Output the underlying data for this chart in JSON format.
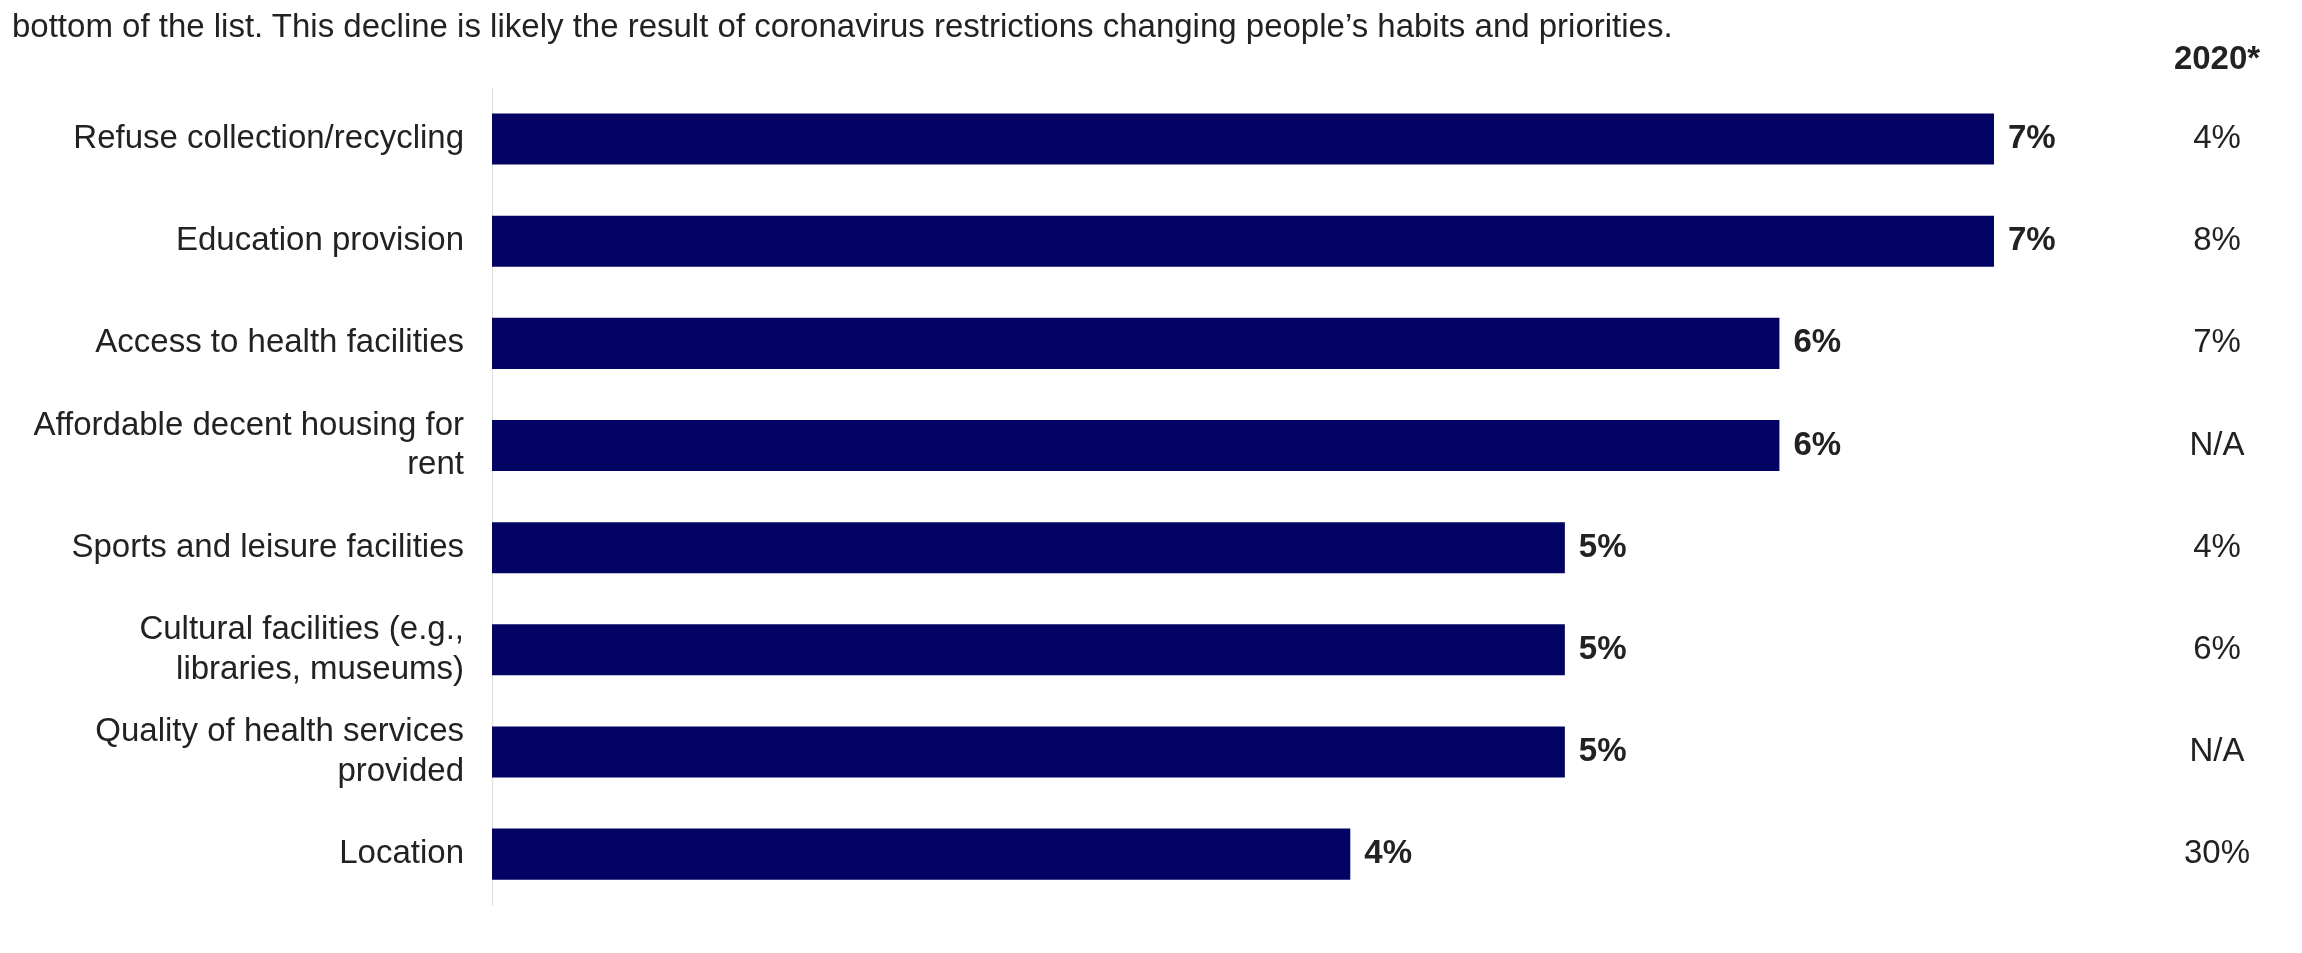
{
  "chart_data": {
    "type": "bar",
    "orientation": "horizontal",
    "categories": [
      "Refuse collection/recycling",
      "Education provision",
      "Access to health facilities",
      "Affordable decent housing for rent",
      "Sports and leisure facilities",
      "Cultural facilities (e.g., libraries, museums)",
      "Quality of health services provided",
      "Location"
    ],
    "values": [
      7,
      7,
      6,
      6,
      5,
      5,
      5,
      4
    ],
    "value_labels": [
      "7%",
      "7%",
      "6%",
      "6%",
      "5%",
      "5%",
      "5%",
      "4%"
    ],
    "color": "#030363",
    "annotations": [
      "bottom of the list. This decline is likely the result of coronavirus restrictions changing people’s habits and priorities.",
      "2020*",
      "4%",
      "8%",
      "7%",
      "N/A",
      "4%",
      "6%",
      "N/A",
      "30%"
    ]
  }
}
